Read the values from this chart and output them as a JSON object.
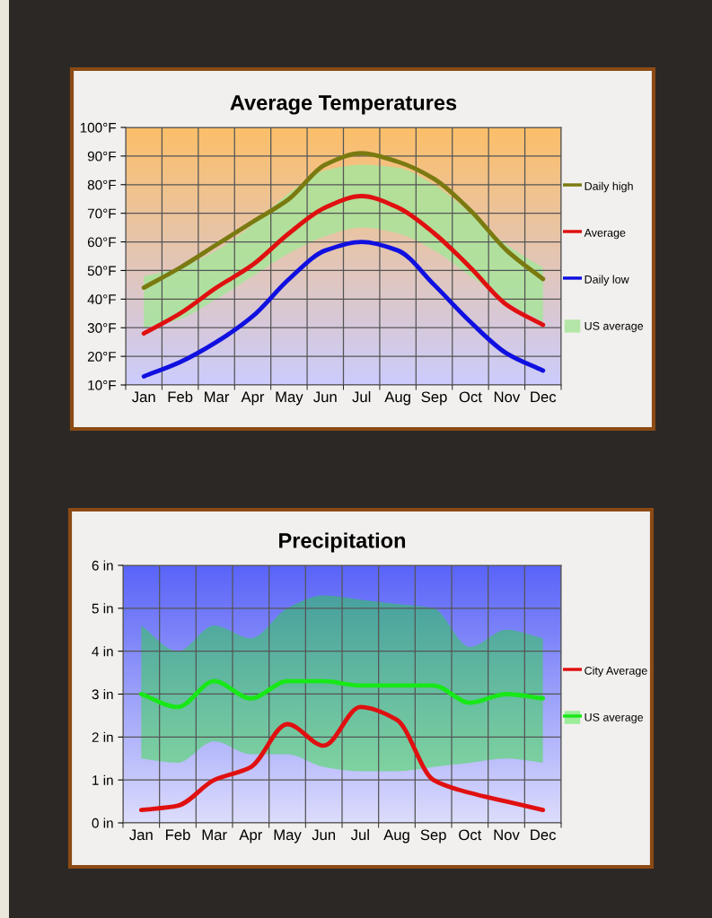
{
  "chart_data": [
    {
      "type": "line",
      "title": "Average Temperatures",
      "categories": [
        "Jan",
        "Feb",
        "Mar",
        "Apr",
        "May",
        "Jun",
        "Jul",
        "Aug",
        "Sep",
        "Oct",
        "Nov",
        "Dec"
      ],
      "ylim": [
        10,
        100
      ],
      "yticks": [
        {
          "value": 10,
          "label": "10°F"
        },
        {
          "value": 20,
          "label": "20°F"
        },
        {
          "value": 30,
          "label": "30°F"
        },
        {
          "value": 40,
          "label": "40°F"
        },
        {
          "value": 50,
          "label": "50°F"
        },
        {
          "value": 60,
          "label": "60°F"
        },
        {
          "value": 70,
          "label": "70°F"
        },
        {
          "value": 80,
          "label": "80°F"
        },
        {
          "value": 90,
          "label": "90°F"
        },
        {
          "value": 100,
          "label": "100°F"
        }
      ],
      "grid": true,
      "legend": "right",
      "marker": "none",
      "line_style": "solid",
      "series": [
        {
          "name": "Daily high",
          "color": "#7a7a10",
          "values": [
            44,
            51,
            59,
            67,
            75,
            87,
            91,
            88,
            82,
            71,
            57,
            47
          ]
        },
        {
          "name": "Average",
          "color": "#e01010",
          "values": [
            28,
            35,
            44,
            52,
            63,
            72,
            76,
            72,
            63,
            51,
            38,
            31
          ]
        },
        {
          "name": "Daily low",
          "color": "#1010e0",
          "values": [
            13,
            18,
            25,
            34,
            47,
            57,
            60,
            57,
            45,
            32,
            21,
            15
          ]
        },
        {
          "name": "US average",
          "type": "area",
          "color": "#a8e49a",
          "values": [
            null,
            null,
            null,
            null,
            null,
            null,
            null,
            null,
            null,
            null,
            null,
            null
          ],
          "lower": [
            30,
            33,
            40,
            48,
            56,
            62,
            65,
            63,
            57,
            48,
            39,
            32
          ],
          "upper": [
            48,
            51,
            57,
            66,
            77,
            85,
            87,
            86,
            80,
            70,
            59,
            51
          ]
        }
      ]
    },
    {
      "type": "line",
      "title": "Precipitation",
      "categories": [
        "Jan",
        "Feb",
        "Mar",
        "Apr",
        "May",
        "Jun",
        "Jul",
        "Aug",
        "Sep",
        "Oct",
        "Nov",
        "Dec"
      ],
      "ylim": [
        0,
        6
      ],
      "yticks": [
        {
          "value": 0,
          "label": "0 in"
        },
        {
          "value": 1,
          "label": "1 in"
        },
        {
          "value": 2,
          "label": "2 in"
        },
        {
          "value": 3,
          "label": "3 in"
        },
        {
          "value": 4,
          "label": "4 in"
        },
        {
          "value": 5,
          "label": "5 in"
        },
        {
          "value": 6,
          "label": "6 in"
        }
      ],
      "grid": true,
      "legend": "right",
      "marker": "none",
      "line_style": "solid",
      "series": [
        {
          "name": "City Average",
          "color": "#e01010",
          "values": [
            0.3,
            0.4,
            1.0,
            1.3,
            2.3,
            1.8,
            2.7,
            2.4,
            1.0,
            0.7,
            0.5,
            0.3
          ]
        },
        {
          "name": "US average",
          "color": "#18e818",
          "values": [
            3.0,
            2.7,
            3.3,
            2.9,
            3.3,
            3.3,
            3.2,
            3.2,
            3.2,
            2.8,
            3.0,
            2.9
          ],
          "lower": [
            1.5,
            1.4,
            1.9,
            1.6,
            1.6,
            1.3,
            1.2,
            1.2,
            1.3,
            1.4,
            1.5,
            1.4
          ],
          "upper": [
            4.6,
            4.0,
            4.6,
            4.3,
            5.0,
            5.3,
            5.2,
            5.1,
            5.0,
            4.1,
            4.5,
            4.3
          ]
        }
      ]
    }
  ]
}
